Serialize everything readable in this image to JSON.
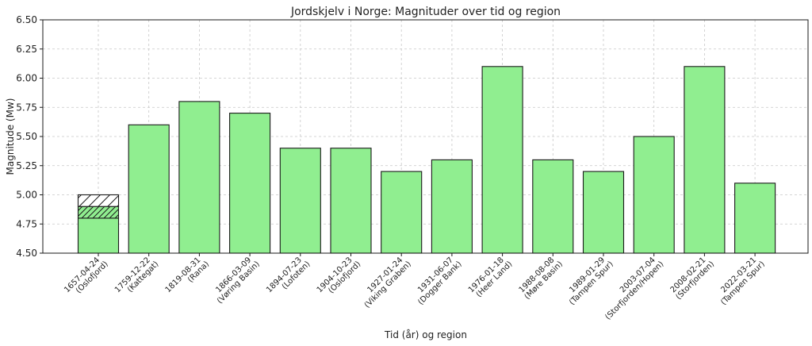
{
  "chart_data": {
    "type": "bar",
    "title": "Jordskjelv i Norge: Magnituder over tid og region",
    "xlabel": "Tid (år) og region",
    "ylabel": "Magnitude (Mw)",
    "ylim": [
      4.5,
      6.5
    ],
    "yticks": [
      "4.50",
      "4.75",
      "5.00",
      "5.25",
      "5.50",
      "5.75",
      "6.00",
      "6.25",
      "6.50"
    ],
    "grid": true,
    "bar_color": "#90ee90",
    "edge_color": "#1a1a1a",
    "categories": [
      {
        "date": "1657-04-24",
        "region": "(Oslofjord)"
      },
      {
        "date": "1759-12-22",
        "region": "(Kattegat)"
      },
      {
        "date": "1819-08-31",
        "region": "(Rana)"
      },
      {
        "date": "1866-03-09",
        "region": "(Vøring Basin)"
      },
      {
        "date": "1894-07-23",
        "region": "(Lofoten)"
      },
      {
        "date": "1904-10-23",
        "region": "(Oslofjord)"
      },
      {
        "date": "1927-01-24",
        "region": "(Viking Graben)"
      },
      {
        "date": "1931-06-07",
        "region": "(Dogger Bank)"
      },
      {
        "date": "1976-01-18",
        "region": "(Heer Land)"
      },
      {
        "date": "1988-08-08",
        "region": "(Møre Basin)"
      },
      {
        "date": "1989-01-29",
        "region": "(Tampen Spur)"
      },
      {
        "date": "2003-07-04",
        "region": "(Storfjorden/Hopen)"
      },
      {
        "date": "2008-02-21",
        "region": "(Storfjorden)"
      },
      {
        "date": "2022-03-21",
        "region": "(Tampen Spur)"
      }
    ],
    "values": [
      4.8,
      5.6,
      5.8,
      5.7,
      5.4,
      5.4,
      5.2,
      5.3,
      6.1,
      5.3,
      5.2,
      5.5,
      6.1,
      5.1
    ],
    "uncertainty": [
      {
        "index": 0,
        "from": 4.8,
        "to": 4.9,
        "hatch": "dense"
      },
      {
        "index": 0,
        "from": 4.9,
        "to": 5.0,
        "hatch": "sparse"
      }
    ]
  }
}
